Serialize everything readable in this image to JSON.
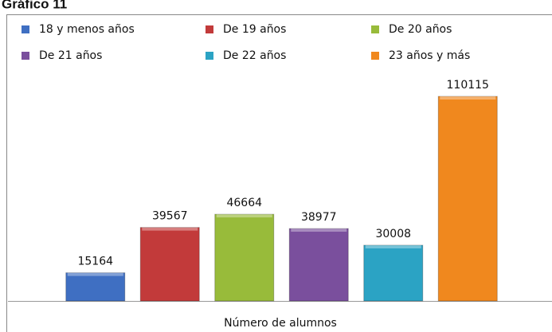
{
  "chart_data": {
    "type": "bar",
    "title": "Gráfico 11",
    "xlabel": "Número de alumnos",
    "series": [
      {
        "name": "18 y menos años",
        "color": "#3f6fc2",
        "values": [
          15164
        ]
      },
      {
        "name": "De 19 años",
        "color": "#c23a3a",
        "values": [
          39567
        ]
      },
      {
        "name": "De 20 años",
        "color": "#98bb3a",
        "values": [
          46664
        ]
      },
      {
        "name": "De 21 años",
        "color": "#7a4f9d",
        "values": [
          38977
        ]
      },
      {
        "name": "De 22 años",
        "color": "#2ba3c4",
        "values": [
          30008
        ]
      },
      {
        "name": "23 años y más",
        "color": "#f0881e",
        "values": [
          110115
        ]
      }
    ]
  }
}
